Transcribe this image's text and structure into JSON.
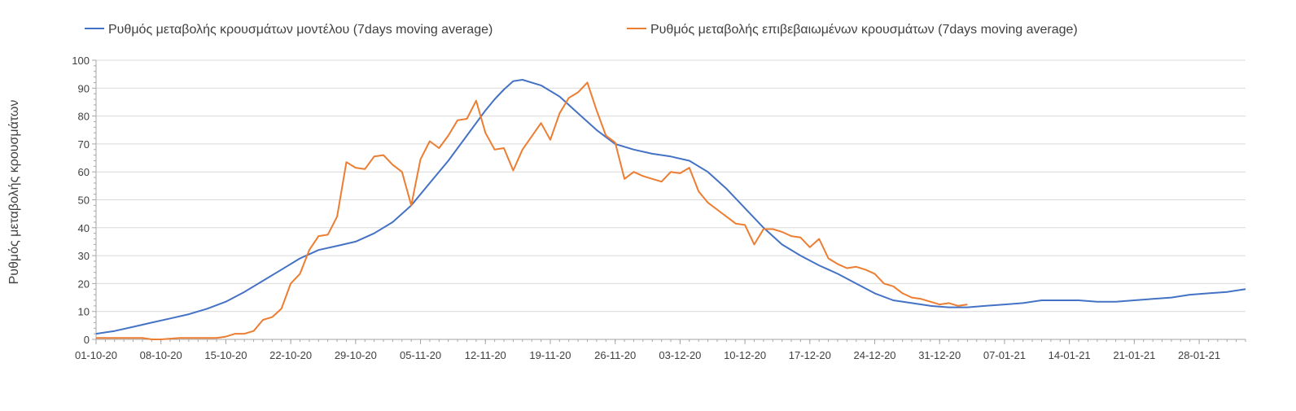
{
  "chart_data": {
    "type": "line",
    "title": "",
    "xlabel": "",
    "ylabel": "Ρυθμός μεταβολής κρουσμάτων",
    "ylim": [
      0,
      100
    ],
    "yticks": [
      0,
      10,
      20,
      30,
      40,
      50,
      60,
      70,
      80,
      90,
      100
    ],
    "x_range_days": [
      0,
      124
    ],
    "x_ticks": [
      {
        "label": "01-10-20",
        "day": 0
      },
      {
        "label": "08-10-20",
        "day": 7
      },
      {
        "label": "15-10-20",
        "day": 14
      },
      {
        "label": "22-10-20",
        "day": 21
      },
      {
        "label": "29-10-20",
        "day": 28
      },
      {
        "label": "05-11-20",
        "day": 35
      },
      {
        "label": "12-11-20",
        "day": 42
      },
      {
        "label": "19-11-20",
        "day": 49
      },
      {
        "label": "26-11-20",
        "day": 56
      },
      {
        "label": "03-12-20",
        "day": 63
      },
      {
        "label": "10-12-20",
        "day": 70
      },
      {
        "label": "17-12-20",
        "day": 77
      },
      {
        "label": "24-12-20",
        "day": 84
      },
      {
        "label": "31-12-20",
        "day": 91
      },
      {
        "label": "07-01-21",
        "day": 98
      },
      {
        "label": "14-01-21",
        "day": 105
      },
      {
        "label": "21-01-21",
        "day": 112
      },
      {
        "label": "28-01-21",
        "day": 119
      }
    ],
    "grid": true,
    "legend_position": "top",
    "series": [
      {
        "name": "Ρυθμός μεταβολής κρουσμάτων μοντέλου (7days moving average)",
        "color": "#4472C4",
        "x": [
          0,
          2,
          4,
          6,
          8,
          10,
          12,
          14,
          16,
          18,
          20,
          22,
          24,
          26,
          28,
          30,
          32,
          34,
          36,
          38,
          40,
          42,
          43,
          44,
          45,
          46,
          48,
          50,
          52,
          54,
          56,
          58,
          60,
          62,
          64,
          66,
          68,
          70,
          72,
          74,
          76,
          78,
          80,
          82,
          84,
          86,
          88,
          90,
          92,
          94,
          96,
          98,
          100,
          102,
          104,
          106,
          108,
          110,
          112,
          114,
          116,
          118,
          120,
          122,
          124
        ],
        "y": [
          2,
          3,
          4.5,
          6,
          7.5,
          9,
          11,
          13.5,
          17,
          21,
          25,
          29,
          32,
          33.5,
          35,
          38,
          42,
          48,
          56,
          64,
          73,
          82,
          86,
          89.5,
          92.5,
          93,
          91,
          87,
          81,
          75,
          70,
          68,
          66.5,
          65.5,
          64,
          60,
          54,
          47,
          40,
          34,
          30,
          26.5,
          23.5,
          20,
          16.5,
          14,
          13,
          12,
          11.5,
          11.5,
          12,
          12.5,
          13,
          14,
          14,
          14,
          13.5,
          13.5,
          14,
          14.5,
          15,
          16,
          16.5,
          17,
          18
        ]
      },
      {
        "name": "Ρυθμός μεταβολής επιβεβαιωμένων κρουσμάτων (7days moving average)",
        "color": "#ED7D31",
        "x": [
          0,
          3,
          5,
          6,
          7,
          9,
          11,
          13,
          14,
          15,
          16,
          17,
          18,
          19,
          20,
          21,
          22,
          23,
          24,
          25,
          26,
          27,
          28,
          29,
          30,
          31,
          32,
          33,
          34,
          35,
          36,
          37,
          38,
          39,
          40,
          41,
          42,
          43,
          44,
          45,
          46,
          48,
          49,
          50,
          51,
          52,
          53,
          54,
          55,
          56,
          57,
          58,
          59,
          60,
          61,
          62,
          63,
          64,
          65,
          66,
          67,
          68,
          69,
          70,
          71,
          72,
          73,
          74,
          75,
          76,
          77,
          78,
          79,
          80,
          81,
          82,
          83,
          84,
          85,
          86,
          87,
          88,
          89,
          90,
          91,
          92,
          93,
          94
        ],
        "y": [
          0.5,
          0.5,
          0.5,
          0,
          0,
          0.5,
          0.5,
          0.5,
          1,
          2,
          2,
          3,
          7,
          8,
          11,
          20,
          23.5,
          32,
          37,
          37.5,
          44,
          63.5,
          61.5,
          61,
          65.5,
          66,
          62.5,
          60,
          48,
          64.5,
          71,
          68.5,
          73,
          78.5,
          79,
          85.5,
          74,
          68,
          68.5,
          60.5,
          68,
          77.5,
          71.5,
          81,
          86.5,
          88.5,
          92,
          82,
          73,
          70.5,
          57.5,
          60,
          58.5,
          57.5,
          56.5,
          60,
          59.5,
          61.5,
          53,
          49,
          46.5,
          44,
          41.5,
          41,
          34,
          39.5,
          39.5,
          38.5,
          37,
          36.5,
          33,
          36,
          29,
          27,
          25.5,
          26,
          25,
          23.5,
          20,
          19,
          16.5,
          15,
          14.5,
          13.5,
          12.5,
          13,
          12,
          12.5
        ]
      }
    ]
  }
}
